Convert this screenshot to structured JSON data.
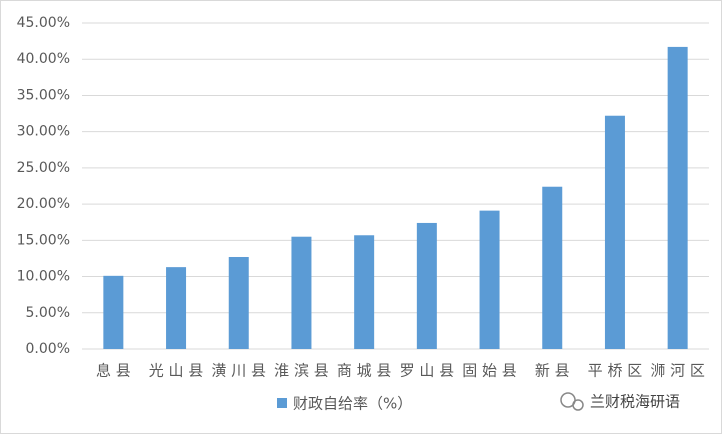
{
  "chart_data": {
    "type": "bar",
    "categories": [
      "息 县",
      "光 山 县",
      "潢 川 县",
      "淮 滨 县",
      "商 城 县",
      "罗 山 县",
      "固 始 县",
      "新 县",
      "平 桥 区",
      "浉 河 区"
    ],
    "series": [
      {
        "name": "财政自给率（%）",
        "color": "#5b9bd5",
        "values": [
          10.1,
          11.3,
          12.7,
          15.5,
          15.7,
          17.4,
          19.1,
          22.4,
          32.2,
          41.7
        ]
      }
    ],
    "ylim": [
      0,
      45
    ],
    "yticks": [
      {
        "value": 0,
        "label": "0.00%"
      },
      {
        "value": 5,
        "label": "5.00%"
      },
      {
        "value": 10,
        "label": "10.00%"
      },
      {
        "value": 15,
        "label": "15.00%"
      },
      {
        "value": 20,
        "label": "20.00%"
      },
      {
        "value": 25,
        "label": "25.00%"
      },
      {
        "value": 30,
        "label": "30.00%"
      },
      {
        "value": 35,
        "label": "35.00%"
      },
      {
        "value": 40,
        "label": "40.00%"
      },
      {
        "value": 45,
        "label": "45.00%"
      }
    ],
    "grid": true,
    "legend": "bottom",
    "watermark": "兰财税海研语"
  }
}
